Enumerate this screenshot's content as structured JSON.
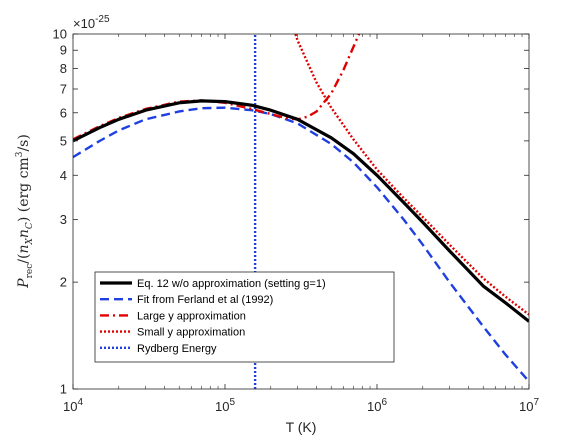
{
  "chart_data": {
    "type": "line",
    "xlabel": "T (K)",
    "ylabel": "P_rec/(n_X n_C) (erg cm^3/s)",
    "ylabel_parts": {
      "p": "P",
      "p_sub": "rec",
      "mid": "/(",
      "n1": "n",
      "n1_sub": "X",
      "n2": "n",
      "n2_sub": "C",
      "tail": ") (erg cm",
      "sup": "3",
      "end": "/s)"
    },
    "x_scale": "log",
    "y_scale": "log",
    "xlim": [
      10000,
      10000000
    ],
    "ylim": [
      1,
      10
    ],
    "y_multiplier": "×10",
    "y_multiplier_exp": "-25",
    "x_ticks": [
      {
        "value": 10000,
        "base": "10",
        "exp": "4"
      },
      {
        "value": 100000,
        "base": "10",
        "exp": "5"
      },
      {
        "value": 1000000,
        "base": "10",
        "exp": "6"
      },
      {
        "value": 10000000,
        "base": "10",
        "exp": "7"
      }
    ],
    "y_ticks": [
      {
        "value": 1,
        "label": "1"
      },
      {
        "value": 2,
        "label": "2"
      },
      {
        "value": 3,
        "label": "3"
      },
      {
        "value": 4,
        "label": "4"
      },
      {
        "value": 5,
        "label": "5"
      },
      {
        "value": 6,
        "label": "6"
      },
      {
        "value": 7,
        "label": "7"
      },
      {
        "value": 8,
        "label": "8"
      },
      {
        "value": 9,
        "label": "9"
      },
      {
        "value": 10,
        "label": "10"
      }
    ],
    "grid": false,
    "legend_position": "bottom-left",
    "series": [
      {
        "name": "Eq. 12 w/o approximation (setting g=1)",
        "color": "#000000",
        "style": "solid",
        "x": [
          10000,
          15000,
          20000,
          30000,
          50000,
          70000,
          100000,
          150000,
          200000,
          300000,
          500000,
          700000,
          1000000,
          1500000,
          2000000,
          3000000,
          5000000,
          7000000,
          10000000
        ],
        "y": [
          5.0,
          5.45,
          5.75,
          6.1,
          6.4,
          6.48,
          6.45,
          6.3,
          6.1,
          5.75,
          5.1,
          4.6,
          4.0,
          3.35,
          2.95,
          2.45,
          1.95,
          1.75,
          1.55
        ]
      },
      {
        "name": "Fit from Ferland et al (1992)",
        "color": "#1f3fe0",
        "style": "dashed",
        "x": [
          10000,
          15000,
          20000,
          30000,
          50000,
          70000,
          100000,
          150000,
          200000,
          300000,
          500000,
          700000,
          1000000,
          1500000,
          2000000,
          3000000,
          5000000,
          7000000,
          10000000
        ],
        "y": [
          4.5,
          5.0,
          5.35,
          5.75,
          6.05,
          6.18,
          6.2,
          6.1,
          5.95,
          5.6,
          4.9,
          4.35,
          3.7,
          3.0,
          2.55,
          2.0,
          1.5,
          1.25,
          1.05
        ]
      },
      {
        "name": "Large y approximation",
        "color": "#e00000",
        "style": "dashdot",
        "x": [
          10000,
          15000,
          20000,
          30000,
          50000,
          70000,
          100000,
          150000,
          200000,
          250000,
          300000,
          350000,
          400000,
          500000,
          600000,
          700000,
          800000
        ],
        "y": [
          5.05,
          5.5,
          5.8,
          6.15,
          6.45,
          6.5,
          6.4,
          6.15,
          5.95,
          5.8,
          5.75,
          5.85,
          6.05,
          6.8,
          7.9,
          9.2,
          10.5
        ]
      },
      {
        "name": "Small y approximation",
        "color": "#e00000",
        "style": "dotted",
        "x": [
          280000,
          300000,
          400000,
          500000,
          700000,
          1000000,
          1500000,
          2000000,
          3000000,
          5000000,
          7000000,
          10000000
        ],
        "y": [
          10.5,
          9.6,
          7.3,
          6.2,
          5.05,
          4.15,
          3.45,
          3.05,
          2.55,
          2.05,
          1.82,
          1.62
        ]
      },
      {
        "name": "Rydberg Energy",
        "color": "#1f3fe0",
        "style": "dotted-vertical",
        "x": [
          157800,
          157800
        ],
        "y": [
          1,
          10
        ]
      }
    ]
  }
}
